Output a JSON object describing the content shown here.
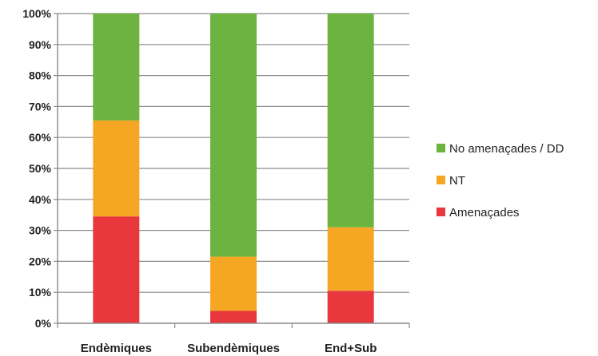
{
  "chart_data": {
    "type": "bar",
    "stacked": true,
    "percent": true,
    "categories": [
      "Endèmiques",
      "Subendèmiques",
      "End+Sub"
    ],
    "series": [
      {
        "name": "Amenaçades",
        "color": "#e8383d",
        "values": [
          34.5,
          4,
          10.5
        ]
      },
      {
        "name": "NT",
        "color": "#f5a623",
        "values": [
          31,
          17.5,
          20.5
        ]
      },
      {
        "name": "No amenaçades / DD",
        "color": "#6cb33f",
        "values": [
          34.5,
          78.5,
          69
        ]
      }
    ],
    "ylim": [
      0,
      100
    ],
    "yticks": [
      "0%",
      "10%",
      "20%",
      "30%",
      "40%",
      "50%",
      "60%",
      "70%",
      "80%",
      "90%",
      "100%"
    ],
    "grid": true,
    "legend_position": "right",
    "legend_order": [
      "No amenaçades / DD",
      "NT",
      "Amenaçades"
    ]
  }
}
